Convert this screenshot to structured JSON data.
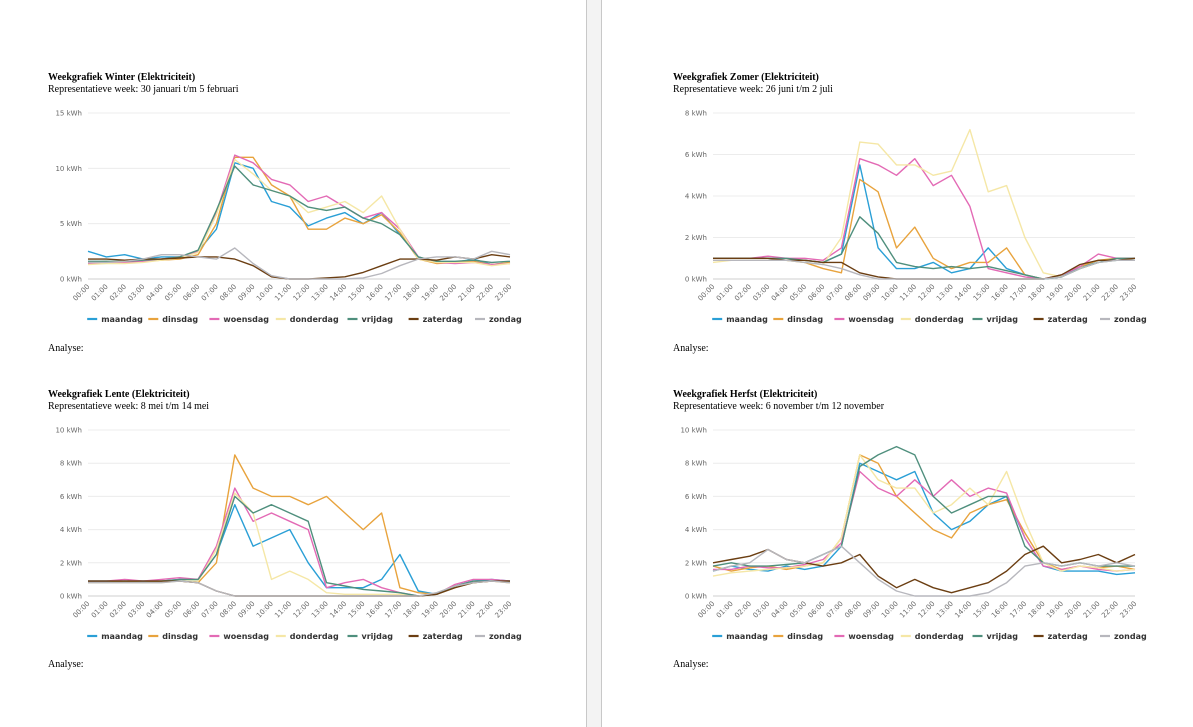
{
  "series_names": [
    "maandag",
    "dinsdag",
    "woensdag",
    "donderdag",
    "vrijdag",
    "zaterdag",
    "zondag"
  ],
  "colors": {
    "maandag": "#2a9fd6",
    "dinsdag": "#e8a33d",
    "woensdag": "#e36ab5",
    "donderdag": "#f5e7a6",
    "vrijdag": "#4f8f7d",
    "zaterdag": "#6b3e12",
    "zondag": "#b7b7bd"
  },
  "hours": [
    "00:00",
    "01:00",
    "02:00",
    "03:00",
    "04:00",
    "05:00",
    "06:00",
    "07:00",
    "08:00",
    "09:00",
    "10:00",
    "11:00",
    "12:00",
    "13:00",
    "14:00",
    "15:00",
    "16:00",
    "17:00",
    "18:00",
    "19:00",
    "20:00",
    "21:00",
    "22:00",
    "23:00"
  ],
  "analyse_label": "Analyse:",
  "chart_data": [
    {
      "type": "line",
      "title": "Weekgrafiek Winter (Elektriciteit)",
      "subtitle": "Representatieve week: 30 januari t/m 5 februari",
      "y_unit": "kWh",
      "ylim": [
        0,
        15
      ],
      "yticks": [
        "0 kWh",
        "5 kWh",
        "10 kWh",
        "15 kWh"
      ],
      "series": [
        {
          "name": "maandag",
          "values": [
            2.5,
            2.0,
            2.2,
            1.8,
            2.0,
            2.0,
            2.5,
            4.5,
            10.5,
            10.0,
            7.0,
            6.5,
            4.8,
            5.5,
            6.0,
            5.0,
            6.0,
            4.0,
            2.0,
            1.5,
            1.5,
            1.8,
            1.3,
            1.5
          ]
        },
        {
          "name": "dinsdag",
          "values": [
            1.5,
            1.6,
            1.5,
            1.6,
            1.7,
            1.8,
            2.2,
            5.0,
            11.0,
            11.0,
            8.5,
            7.5,
            4.5,
            4.5,
            5.5,
            5.0,
            5.8,
            4.2,
            1.8,
            1.4,
            1.5,
            1.6,
            1.3,
            1.5
          ]
        },
        {
          "name": "woensdag",
          "values": [
            1.4,
            1.5,
            1.5,
            1.6,
            1.8,
            2.0,
            2.5,
            6.0,
            11.2,
            10.5,
            9.0,
            8.5,
            7.0,
            7.5,
            6.5,
            5.5,
            6.0,
            4.5,
            2.0,
            1.5,
            1.4,
            1.5,
            1.3,
            1.4
          ]
        },
        {
          "name": "donderdag",
          "values": [
            1.3,
            1.4,
            1.4,
            1.5,
            1.7,
            1.9,
            2.4,
            5.8,
            10.8,
            9.5,
            8.0,
            7.5,
            6.0,
            6.5,
            7.0,
            6.0,
            7.5,
            4.5,
            1.8,
            1.5,
            1.5,
            1.5,
            1.2,
            1.4
          ]
        },
        {
          "name": "vrijdag",
          "values": [
            1.6,
            1.6,
            1.6,
            1.7,
            1.8,
            2.0,
            2.6,
            6.2,
            10.2,
            8.5,
            8.0,
            7.5,
            6.5,
            6.2,
            6.5,
            5.5,
            5.0,
            4.0,
            2.0,
            1.6,
            1.6,
            1.7,
            1.5,
            1.6
          ]
        },
        {
          "name": "zaterdag",
          "values": [
            1.8,
            1.8,
            1.7,
            1.8,
            1.8,
            1.9,
            2.0,
            2.0,
            1.8,
            1.2,
            0.2,
            0.0,
            0.0,
            0.1,
            0.2,
            0.6,
            1.2,
            1.8,
            1.8,
            1.7,
            2.0,
            1.8,
            2.2,
            2.0
          ]
        },
        {
          "name": "zondag",
          "values": [
            1.5,
            1.5,
            1.6,
            1.8,
            2.2,
            2.2,
            2.0,
            1.8,
            2.8,
            1.4,
            0.3,
            0.0,
            0.0,
            0.0,
            0.0,
            0.1,
            0.5,
            1.2,
            1.8,
            2.0,
            2.0,
            1.8,
            2.5,
            2.2
          ]
        }
      ]
    },
    {
      "type": "line",
      "title": "Weekgrafiek Zomer (Elektriciteit)",
      "subtitle": "Representatieve week: 26 juni t/m 2 juli",
      "y_unit": "kWh",
      "ylim": [
        0,
        8
      ],
      "yticks": [
        "0 kWh",
        "2 kWh",
        "4 kWh",
        "6 kWh",
        "8 kWh"
      ],
      "series": [
        {
          "name": "maandag",
          "values": [
            1.0,
            1.0,
            1.0,
            1.0,
            0.9,
            0.9,
            0.8,
            1.2,
            5.5,
            1.5,
            0.5,
            0.5,
            0.8,
            0.3,
            0.5,
            1.5,
            0.5,
            0.2,
            0.0,
            0.1,
            0.6,
            0.8,
            0.9,
            1.0
          ]
        },
        {
          "name": "dinsdag",
          "values": [
            0.9,
            0.9,
            0.9,
            0.9,
            0.9,
            0.8,
            0.5,
            0.3,
            4.8,
            4.2,
            1.5,
            2.5,
            1.0,
            0.5,
            0.8,
            0.8,
            1.5,
            0.2,
            0.0,
            0.2,
            0.6,
            0.9,
            1.0,
            1.0
          ]
        },
        {
          "name": "woensdag",
          "values": [
            1.0,
            1.0,
            1.0,
            1.1,
            1.0,
            1.0,
            0.9,
            1.5,
            5.8,
            5.5,
            5.0,
            5.8,
            4.5,
            5.0,
            3.5,
            0.5,
            0.3,
            0.1,
            0.0,
            0.2,
            0.6,
            1.2,
            1.0,
            1.0
          ]
        },
        {
          "name": "donderdag",
          "values": [
            0.8,
            0.9,
            0.9,
            0.9,
            0.9,
            0.8,
            0.7,
            2.0,
            6.6,
            6.5,
            5.5,
            5.5,
            5.0,
            5.2,
            7.2,
            4.2,
            4.5,
            2.0,
            0.3,
            0.1,
            0.5,
            0.8,
            0.9,
            0.9
          ]
        },
        {
          "name": "vrijdag",
          "values": [
            1.0,
            1.0,
            1.0,
            1.0,
            1.0,
            0.9,
            0.8,
            1.2,
            3.0,
            2.2,
            0.8,
            0.6,
            0.5,
            0.6,
            0.5,
            0.6,
            0.4,
            0.2,
            0.0,
            0.1,
            0.5,
            0.8,
            1.0,
            1.0
          ]
        },
        {
          "name": "zaterdag",
          "values": [
            1.0,
            1.0,
            1.0,
            1.0,
            0.9,
            0.9,
            0.8,
            0.8,
            0.3,
            0.1,
            0.0,
            0.0,
            0.0,
            0.0,
            0.0,
            0.0,
            0.0,
            0.0,
            0.0,
            0.2,
            0.7,
            0.9,
            0.9,
            1.0
          ]
        },
        {
          "name": "zondag",
          "values": [
            0.9,
            0.9,
            0.9,
            0.9,
            0.9,
            0.8,
            0.7,
            0.5,
            0.2,
            0.0,
            0.0,
            0.0,
            0.0,
            0.0,
            0.0,
            0.0,
            0.0,
            0.0,
            0.0,
            0.1,
            0.5,
            0.8,
            0.9,
            0.9
          ]
        }
      ]
    },
    {
      "type": "line",
      "title": "Weekgrafiek Lente (Elektriciteit)",
      "subtitle": "Representatieve week: 8 mei t/m 14 mei",
      "y_unit": "kWh",
      "ylim": [
        0,
        10
      ],
      "yticks": [
        "0 kWh",
        "2 kWh",
        "4 kWh",
        "6 kWh",
        "8 kWh",
        "10 kWh"
      ],
      "series": [
        {
          "name": "maandag",
          "values": [
            0.9,
            0.9,
            0.9,
            0.9,
            0.9,
            1.0,
            1.0,
            2.5,
            5.5,
            3.0,
            3.5,
            4.0,
            2.0,
            0.5,
            0.5,
            0.5,
            1.0,
            2.5,
            0.3,
            0.1,
            0.6,
            0.9,
            1.0,
            0.9
          ]
        },
        {
          "name": "dinsdag",
          "values": [
            0.8,
            0.8,
            0.9,
            0.8,
            0.9,
            0.9,
            0.8,
            2.0,
            8.5,
            6.5,
            6.0,
            6.0,
            5.5,
            6.0,
            5.0,
            4.0,
            5.0,
            0.5,
            0.2,
            0.1,
            0.6,
            0.8,
            0.9,
            0.8
          ]
        },
        {
          "name": "woensdag",
          "values": [
            0.9,
            0.9,
            1.0,
            0.9,
            1.0,
            1.1,
            1.0,
            3.0,
            6.5,
            4.5,
            5.0,
            4.5,
            4.0,
            0.5,
            0.8,
            1.0,
            0.5,
            0.2,
            0.0,
            0.1,
            0.7,
            1.0,
            1.0,
            0.9
          ]
        },
        {
          "name": "donderdag",
          "values": [
            0.8,
            0.8,
            0.8,
            0.8,
            0.8,
            0.9,
            0.9,
            2.8,
            6.2,
            5.0,
            1.0,
            1.5,
            1.0,
            0.2,
            0.1,
            0.1,
            0.1,
            0.1,
            0.0,
            0.1,
            0.5,
            0.8,
            0.9,
            0.8
          ]
        },
        {
          "name": "vrijdag",
          "values": [
            0.9,
            0.9,
            0.9,
            0.9,
            0.9,
            1.0,
            1.0,
            2.5,
            6.0,
            5.0,
            5.5,
            5.0,
            4.5,
            0.8,
            0.6,
            0.4,
            0.3,
            0.2,
            0.0,
            0.1,
            0.6,
            0.9,
            0.9,
            0.9
          ]
        },
        {
          "name": "zaterdag",
          "values": [
            0.9,
            0.9,
            0.9,
            0.9,
            0.9,
            0.9,
            0.8,
            0.3,
            0.0,
            0.0,
            0.0,
            0.0,
            0.0,
            0.0,
            0.0,
            0.0,
            0.0,
            0.0,
            0.0,
            0.1,
            0.5,
            0.8,
            0.9,
            0.9
          ]
        },
        {
          "name": "zondag",
          "values": [
            0.8,
            0.8,
            0.8,
            0.8,
            0.8,
            0.9,
            0.8,
            0.3,
            0.0,
            0.0,
            0.0,
            0.0,
            0.0,
            0.0,
            0.0,
            0.0,
            0.0,
            0.0,
            0.0,
            0.2,
            0.6,
            0.8,
            0.9,
            0.8
          ]
        }
      ]
    },
    {
      "type": "line",
      "title": "Weekgrafiek Herfst (Elektriciteit)",
      "subtitle": "Representatieve week: 6 november t/m 12 november",
      "y_unit": "kWh",
      "ylim": [
        0,
        10
      ],
      "yticks": [
        "0 kWh",
        "2 kWh",
        "4 kWh",
        "6 kWh",
        "8 kWh",
        "10 kWh"
      ],
      "series": [
        {
          "name": "maandag",
          "values": [
            1.5,
            1.8,
            1.6,
            1.5,
            1.8,
            1.6,
            1.8,
            3.0,
            8.0,
            7.5,
            7.0,
            7.5,
            5.0,
            4.0,
            4.5,
            5.5,
            6.0,
            3.5,
            1.8,
            1.5,
            1.5,
            1.5,
            1.3,
            1.4
          ]
        },
        {
          "name": "dinsdag",
          "values": [
            1.8,
            1.5,
            1.7,
            1.8,
            1.6,
            1.8,
            2.0,
            3.5,
            8.5,
            8.0,
            6.0,
            5.0,
            4.0,
            3.5,
            5.0,
            5.5,
            5.8,
            3.8,
            2.0,
            1.6,
            1.8,
            1.7,
            1.8,
            1.6
          ]
        },
        {
          "name": "woensdag",
          "values": [
            1.6,
            1.6,
            1.8,
            1.7,
            1.7,
            1.9,
            2.2,
            3.2,
            7.5,
            6.5,
            6.0,
            7.0,
            6.0,
            7.0,
            6.0,
            6.5,
            6.2,
            3.5,
            1.8,
            1.6,
            1.8,
            1.6,
            1.5,
            1.6
          ]
        },
        {
          "name": "donderdag",
          "values": [
            1.2,
            1.4,
            1.5,
            1.6,
            1.7,
            1.8,
            2.0,
            3.5,
            8.5,
            7.0,
            6.5,
            6.5,
            5.0,
            5.5,
            6.5,
            5.5,
            7.5,
            4.5,
            2.0,
            1.5,
            1.8,
            1.7,
            1.5,
            1.6
          ]
        },
        {
          "name": "vrijdag",
          "values": [
            1.8,
            2.0,
            1.8,
            1.8,
            1.9,
            2.0,
            2.5,
            3.0,
            7.8,
            8.5,
            9.0,
            8.5,
            6.0,
            5.0,
            5.5,
            6.0,
            6.0,
            3.0,
            2.0,
            1.8,
            2.0,
            1.8,
            1.8,
            1.8
          ]
        },
        {
          "name": "zaterdag",
          "values": [
            2.0,
            2.2,
            2.4,
            2.8,
            2.2,
            2.0,
            1.8,
            2.0,
            2.5,
            1.2,
            0.5,
            1.0,
            0.5,
            0.2,
            0.5,
            0.8,
            1.5,
            2.5,
            3.0,
            2.0,
            2.2,
            2.5,
            2.0,
            2.5
          ]
        },
        {
          "name": "zondag",
          "values": [
            1.5,
            1.8,
            2.0,
            2.8,
            2.2,
            2.0,
            2.5,
            3.0,
            2.0,
            1.0,
            0.3,
            0.0,
            0.0,
            0.0,
            0.0,
            0.2,
            0.8,
            1.8,
            2.0,
            1.8,
            2.0,
            1.8,
            2.0,
            1.8
          ]
        }
      ]
    }
  ]
}
